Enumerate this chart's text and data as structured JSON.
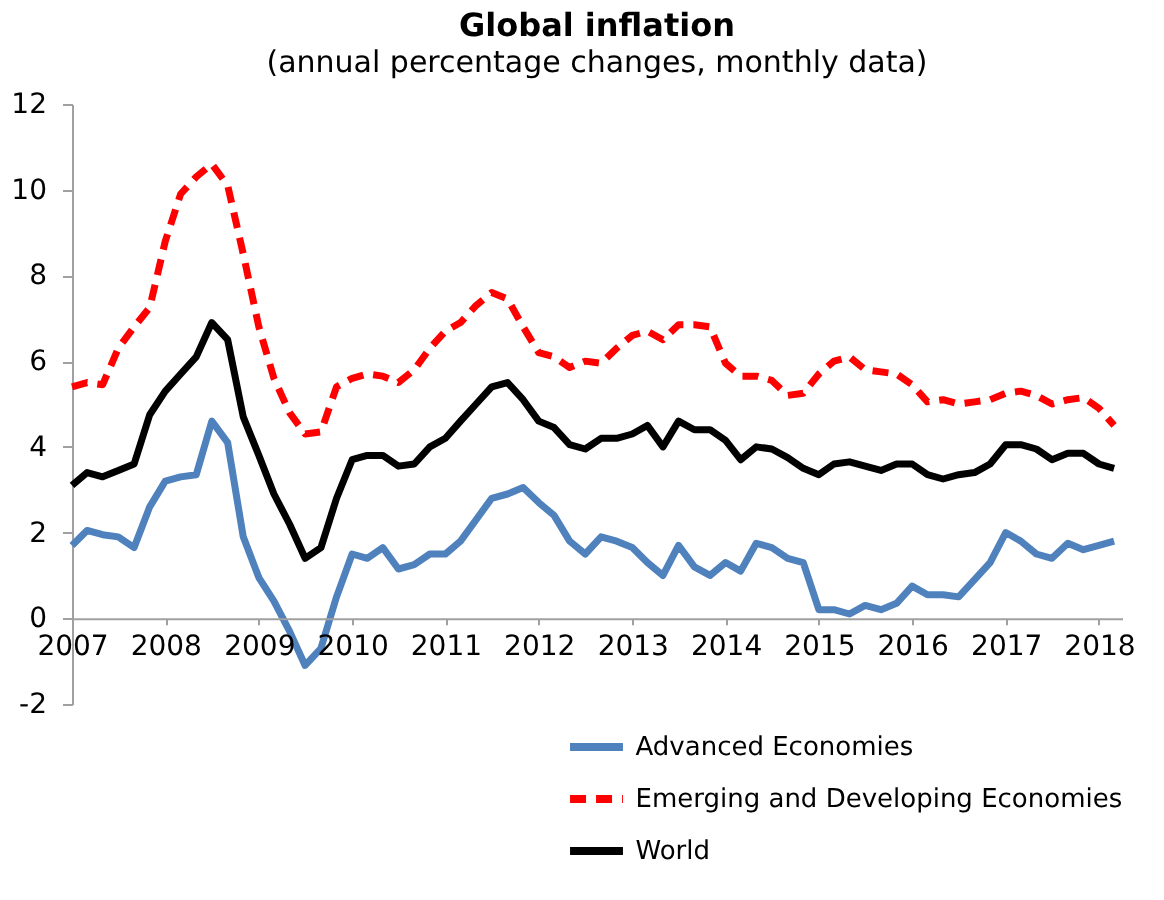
{
  "chart_data": {
    "type": "line",
    "title": "Global inflation",
    "subtitle": "(annual percentage changes, monthly data)",
    "x": [
      "2007-01",
      "2007-03",
      "2007-05",
      "2007-07",
      "2007-09",
      "2007-11",
      "2008-01",
      "2008-03",
      "2008-05",
      "2008-07",
      "2008-09",
      "2008-11",
      "2009-01",
      "2009-03",
      "2009-05",
      "2009-07",
      "2009-09",
      "2009-11",
      "2010-01",
      "2010-03",
      "2010-05",
      "2010-07",
      "2010-09",
      "2010-11",
      "2011-01",
      "2011-03",
      "2011-05",
      "2011-07",
      "2011-09",
      "2011-11",
      "2012-01",
      "2012-03",
      "2012-05",
      "2012-07",
      "2012-09",
      "2012-11",
      "2013-01",
      "2013-03",
      "2013-05",
      "2013-07",
      "2013-09",
      "2013-11",
      "2014-01",
      "2014-03",
      "2014-05",
      "2014-07",
      "2014-09",
      "2014-11",
      "2015-01",
      "2015-03",
      "2015-05",
      "2015-07",
      "2015-09",
      "2015-11",
      "2016-01",
      "2016-03",
      "2016-05",
      "2016-07",
      "2016-09",
      "2016-11",
      "2017-01",
      "2017-03",
      "2017-05",
      "2017-07",
      "2017-09",
      "2017-11",
      "2018-01",
      "2018-03"
    ],
    "series": [
      {
        "name": "Advanced Economies",
        "color": "#4f81bd",
        "line_style": "solid",
        "values": [
          1.7,
          2.05,
          1.95,
          1.9,
          1.65,
          2.6,
          3.2,
          3.3,
          3.35,
          4.6,
          4.1,
          1.9,
          0.95,
          0.4,
          -0.3,
          -1.1,
          -0.7,
          0.5,
          1.5,
          1.4,
          1.65,
          1.15,
          1.25,
          1.5,
          1.5,
          1.8,
          2.3,
          2.8,
          2.9,
          3.05,
          2.7,
          2.4,
          1.8,
          1.5,
          1.9,
          1.8,
          1.65,
          1.3,
          1.0,
          1.7,
          1.2,
          1.0,
          1.3,
          1.1,
          1.75,
          1.65,
          1.4,
          1.3,
          0.2,
          0.2,
          0.1,
          0.3,
          0.2,
          0.35,
          0.75,
          0.55,
          0.55,
          0.5,
          0.9,
          1.3,
          2.0,
          1.8,
          1.5,
          1.4,
          1.75,
          1.6,
          1.7,
          1.8
        ]
      },
      {
        "name": "Emerging and Developing Economies",
        "color": "#ff0000",
        "line_style": "dashed",
        "values": [
          5.4,
          5.5,
          5.45,
          6.3,
          6.8,
          7.25,
          8.8,
          9.9,
          10.3,
          10.6,
          10.1,
          8.5,
          6.8,
          5.6,
          4.8,
          4.3,
          4.35,
          5.4,
          5.6,
          5.7,
          5.65,
          5.5,
          5.8,
          6.3,
          6.7,
          6.9,
          7.3,
          7.6,
          7.45,
          6.8,
          6.2,
          6.1,
          5.85,
          6.0,
          5.95,
          6.3,
          6.6,
          6.7,
          6.5,
          6.85,
          6.85,
          6.8,
          5.95,
          5.65,
          5.65,
          5.55,
          5.2,
          5.25,
          5.7,
          6.0,
          6.1,
          5.8,
          5.75,
          5.7,
          5.45,
          5.05,
          5.1,
          5.0,
          5.05,
          5.1,
          5.25,
          5.3,
          5.2,
          5.0,
          5.1,
          5.15,
          4.9,
          4.5
        ]
      },
      {
        "name": "World",
        "color": "#000000",
        "line_style": "solid",
        "values": [
          3.1,
          3.4,
          3.3,
          3.45,
          3.6,
          4.75,
          5.3,
          5.7,
          6.1,
          6.9,
          6.5,
          4.7,
          3.8,
          2.9,
          2.2,
          1.4,
          1.65,
          2.8,
          3.7,
          3.8,
          3.8,
          3.55,
          3.6,
          4.0,
          4.2,
          4.6,
          5.0,
          5.4,
          5.5,
          5.1,
          4.6,
          4.45,
          4.05,
          3.95,
          4.2,
          4.2,
          4.3,
          4.5,
          4.0,
          4.6,
          4.4,
          4.4,
          4.15,
          3.7,
          4.0,
          3.95,
          3.75,
          3.5,
          3.35,
          3.6,
          3.65,
          3.55,
          3.45,
          3.6,
          3.6,
          3.35,
          3.25,
          3.35,
          3.4,
          3.6,
          4.05,
          4.05,
          3.95,
          3.7,
          3.85,
          3.85,
          3.6,
          3.5
        ]
      }
    ],
    "xlim": [
      "2007-01",
      "2018-04"
    ],
    "xticks": [
      {
        "value": "2007",
        "label": "2007"
      },
      {
        "value": "2008",
        "label": "2008"
      },
      {
        "value": "2009",
        "label": "2009"
      },
      {
        "value": "2010",
        "label": "2010"
      },
      {
        "value": "2011",
        "label": "2011"
      },
      {
        "value": "2012",
        "label": "2012"
      },
      {
        "value": "2013",
        "label": "2013"
      },
      {
        "value": "2014",
        "label": "2014"
      },
      {
        "value": "2015",
        "label": "2015"
      },
      {
        "value": "2016",
        "label": "2016"
      },
      {
        "value": "2017",
        "label": "2017"
      },
      {
        "value": "2018",
        "label": "2018"
      }
    ],
    "ylim": [
      -2,
      12
    ],
    "yticks": [
      -2,
      0,
      2,
      4,
      6,
      8,
      10,
      12
    ],
    "grid": false,
    "legend": "bottom right",
    "marker": "none"
  }
}
